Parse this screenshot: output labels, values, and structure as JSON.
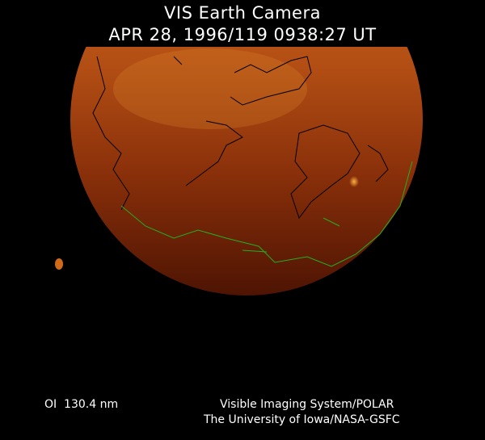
{
  "header": {
    "title": "VIS Earth Camera",
    "timestamp": "APR 28, 1996/119 0938:27 UT"
  },
  "image": {
    "subject": "earth-disk-far-ultraviolet",
    "colors": {
      "bright": "#d9781f",
      "mid": "#a84010",
      "dark": "#5a1804",
      "coast_north": "#000000",
      "coast_south": "#22b022"
    }
  },
  "footer": {
    "wavelength": "OI  130.4 nm",
    "credit_line1": "Visible Imaging System/POLAR",
    "credit_line2": "The University of Iowa/NASA-GSFC"
  }
}
